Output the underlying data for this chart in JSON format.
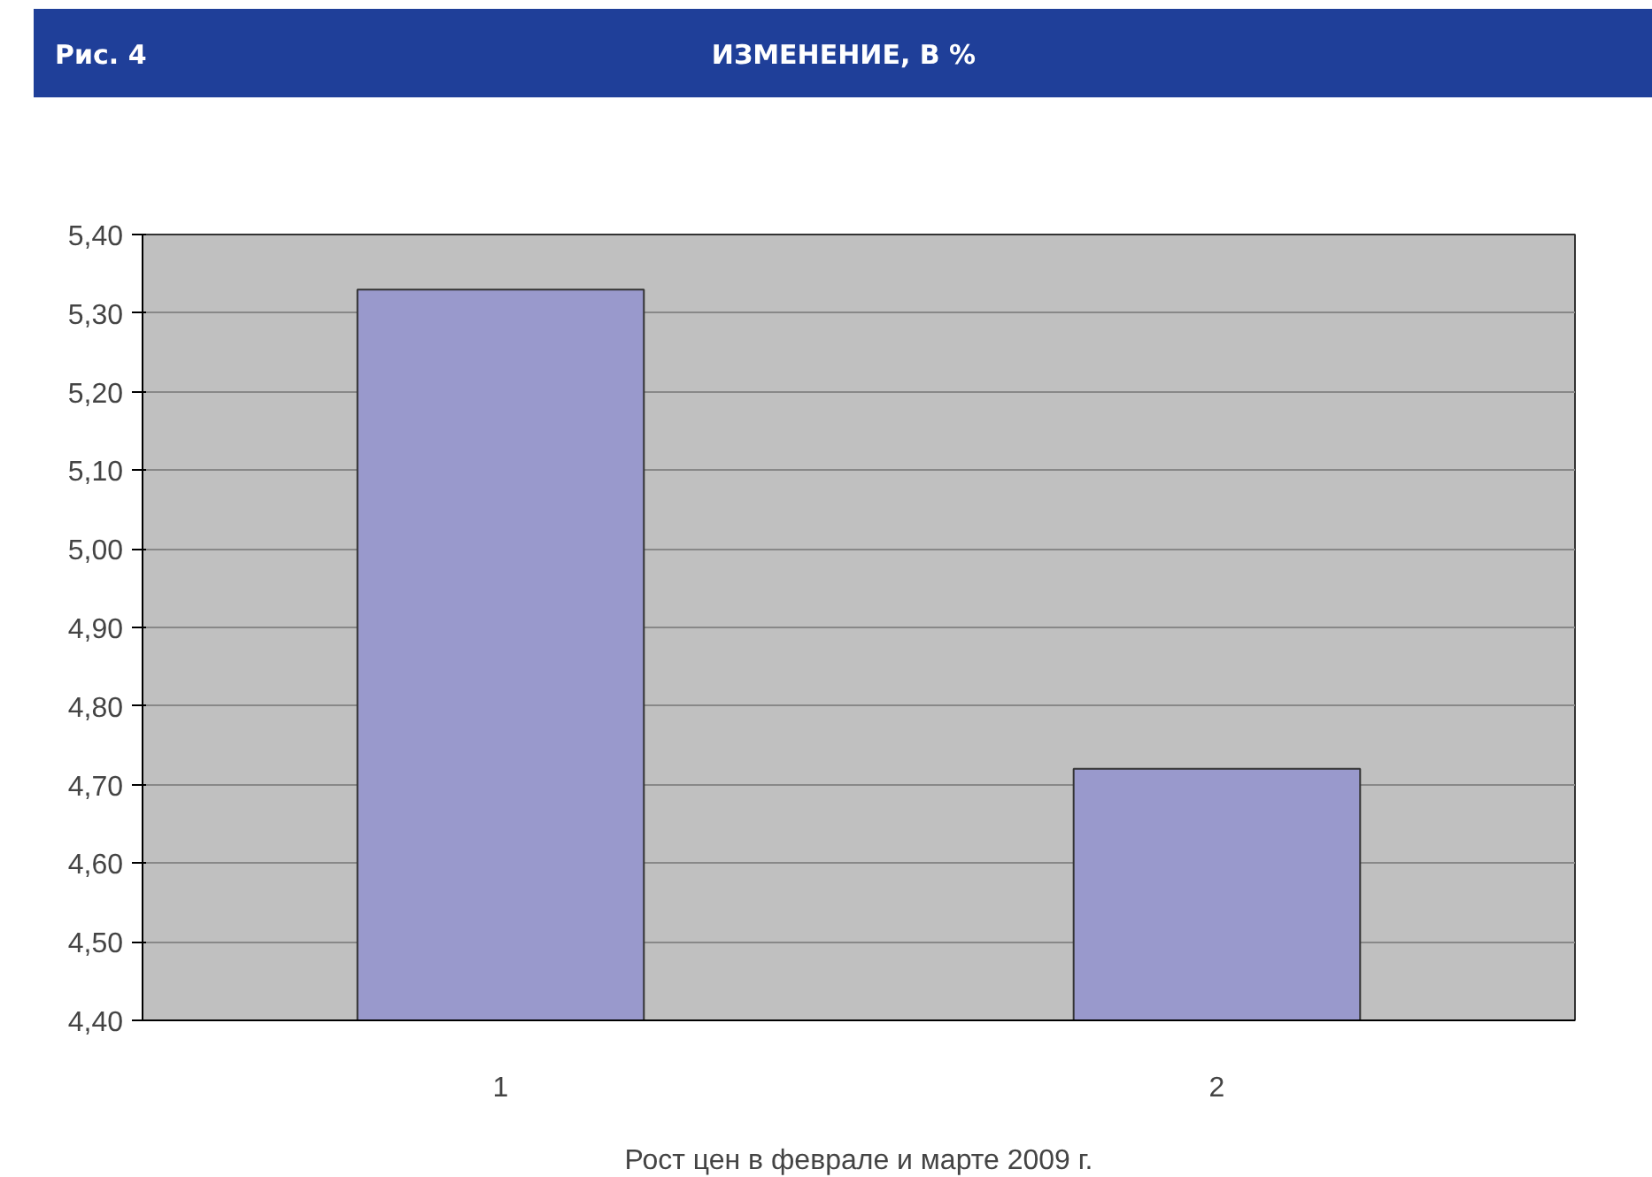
{
  "chart_data": {
    "type": "bar",
    "title": "ИЗМЕНЕНИЕ, В %",
    "annotations": [
      "Рис. 4"
    ],
    "xlabel": "Рост цен в феврале и марте 2009 г.",
    "categories": [
      "1",
      "2"
    ],
    "values": [
      5.33,
      4.72
    ],
    "color": "#9999cc",
    "ylim": [
      4.4,
      5.4
    ],
    "yticks": [
      {
        "value": 4.4,
        "label": "4,40"
      },
      {
        "value": 4.5,
        "label": "4,50"
      },
      {
        "value": 4.6,
        "label": "4,60"
      },
      {
        "value": 4.7,
        "label": "4,70"
      },
      {
        "value": 4.8,
        "label": "4,80"
      },
      {
        "value": 4.9,
        "label": "4,90"
      },
      {
        "value": 5.0,
        "label": "5,00"
      },
      {
        "value": 5.1,
        "label": "5,10"
      },
      {
        "value": 5.2,
        "label": "5,20"
      },
      {
        "value": 5.3,
        "label": "5,30"
      },
      {
        "value": 5.4,
        "label": "5,40"
      }
    ],
    "grid": "y"
  }
}
